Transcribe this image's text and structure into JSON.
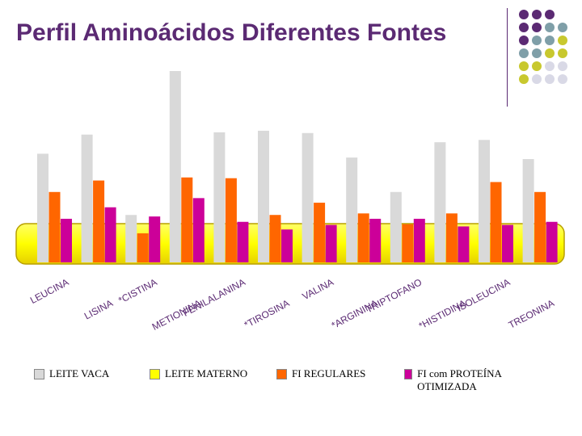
{
  "title": "Perfil Aminoácidos Diferentes Fontes",
  "colors": {
    "title": "#5b2a73",
    "leite_vaca": "#d9d9d9",
    "leite_materno": "#ffff00",
    "fi_regulares": "#ff6600",
    "fi_proteina": "#cc0099",
    "band": "#ffff00"
  },
  "decor_dots_colors": [
    "#5b2a73",
    "#7f9fa8",
    "#c8c82e",
    "#d9d9e6"
  ],
  "legend": [
    {
      "label": "LEITE VACA",
      "color": "#d9d9d9"
    },
    {
      "label": "LEITE MATERNO",
      "color": "#ffff00"
    },
    {
      "label": "FI REGULARES",
      "color": "#ff6600"
    },
    {
      "label": "FI com PROTEÍNA OTIMIZADA",
      "color": "#cc0099"
    }
  ],
  "chart_data": {
    "type": "bar",
    "title": "",
    "categories": [
      "LEUCINA",
      "LISINA",
      "*CISTINA",
      "METIONINA",
      "FENILALANINA",
      "*TIROSINA",
      "VALINA",
      "*ARGININA",
      "TRIPTOFANO",
      "*HISTIDINA",
      "ISOLEUCINA",
      "TREONINA"
    ],
    "series": [
      {
        "name": "LEITE VACA",
        "color": "#d9d9d9",
        "values": [
          142,
          167,
          62,
          250,
          170,
          172,
          169,
          137,
          92,
          157,
          160,
          135
        ]
      },
      {
        "name": "LEITE MATERNO",
        "color": "#ffff00",
        "values": [
          0,
          0,
          0,
          0,
          0,
          0,
          0,
          0,
          0,
          0,
          0,
          0
        ]
      },
      {
        "name": "FI REGULARES",
        "color": "#ff6600",
        "values": [
          92,
          107,
          38,
          111,
          110,
          62,
          78,
          64,
          50,
          64,
          105,
          92
        ]
      },
      {
        "name": "FI com PROTEÍNA OTIMIZADA",
        "color": "#cc0099",
        "values": [
          57,
          72,
          60,
          84,
          53,
          43,
          49,
          57,
          57,
          47,
          49,
          53
        ]
      }
    ],
    "ylim": [
      0,
      260
    ],
    "grid": false,
    "legend_position": "bottom"
  }
}
